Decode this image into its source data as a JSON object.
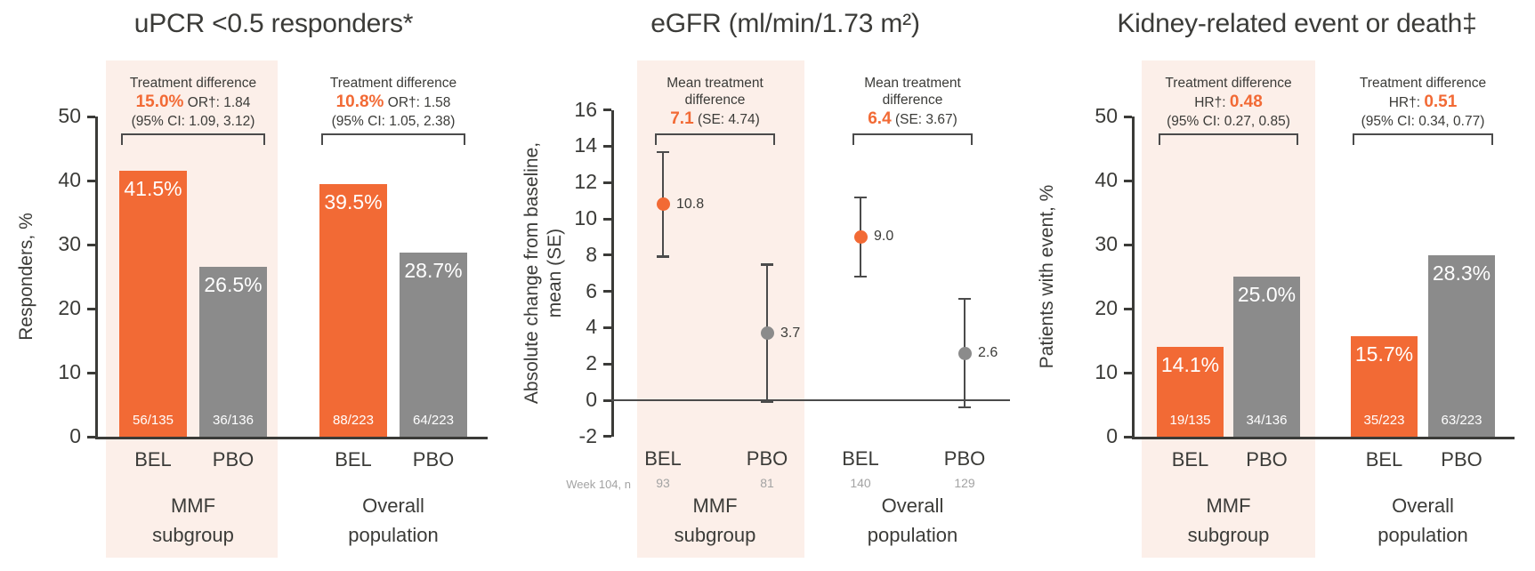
{
  "colors": {
    "bel": "#F26A35",
    "pbo": "#8B8B8B",
    "highlight": "#FCEFE9",
    "accent_text": "#F26A35",
    "dark_text": "#3B3B38",
    "muted_text": "#A3A3A3",
    "line": "#4B4B4B",
    "bar_label_text": "#FFFFFF"
  },
  "arms": [
    "BEL",
    "PBO"
  ],
  "chart_data": [
    {
      "type": "bar",
      "title": "uPCR <0.5 responders*",
      "ylabel": "Responders, %",
      "ylim": [
        0,
        50
      ],
      "yticks": [
        0,
        10,
        20,
        30,
        40,
        50
      ],
      "grid": false,
      "groups": [
        {
          "label": [
            "MMF",
            "subgroup"
          ],
          "highlighted": true,
          "annotation": {
            "lines": [
              "Treatment difference"
            ],
            "value_parts": [
              {
                "text": "15.0%",
                "accent": true
              },
              {
                "text": " OR†: 1.84",
                "accent": false
              }
            ],
            "ci": "(95% CI: 1.09, 3.12)"
          },
          "bars": [
            {
              "arm": "BEL",
              "value": 41.5,
              "value_label": "41.5%",
              "n_label": "56/135"
            },
            {
              "arm": "PBO",
              "value": 26.5,
              "value_label": "26.5%",
              "n_label": "36/136"
            }
          ]
        },
        {
          "label": [
            "Overall",
            "population"
          ],
          "highlighted": false,
          "annotation": {
            "lines": [
              "Treatment difference"
            ],
            "value_parts": [
              {
                "text": "10.8%",
                "accent": true
              },
              {
                "text": " OR†: 1.58",
                "accent": false
              }
            ],
            "ci": "(95% CI: 1.05, 2.38)"
          },
          "bars": [
            {
              "arm": "BEL",
              "value": 39.5,
              "value_label": "39.5%",
              "n_label": "88/223"
            },
            {
              "arm": "PBO",
              "value": 28.7,
              "value_label": "28.7%",
              "n_label": "64/223"
            }
          ]
        }
      ]
    },
    {
      "type": "errorbar",
      "title": "eGFR (ml/min/1.73 m²)",
      "ylabel_lines": [
        "Absolute change from baseline,",
        "mean (SE)"
      ],
      "ylim": [
        -2,
        16
      ],
      "yticks": [
        16,
        14,
        12,
        10,
        8,
        6,
        4,
        2,
        0,
        -2
      ],
      "zero_line": true,
      "x_footer_label": "Week 104, n",
      "groups": [
        {
          "label": [
            "MMF",
            "subgroup"
          ],
          "highlighted": true,
          "annotation": {
            "lines": [
              "Mean treatment",
              "difference"
            ],
            "value_parts": [
              {
                "text": "7.1",
                "accent": true
              },
              {
                "text": " (SE: 4.74)",
                "accent": false
              }
            ],
            "ci": null
          },
          "points": [
            {
              "arm": "BEL",
              "value": 10.8,
              "value_label": "10.8",
              "whisker_low": 7.9,
              "whisker_high": 13.7,
              "n": "93"
            },
            {
              "arm": "PBO",
              "value": 3.7,
              "value_label": "3.7",
              "whisker_low": -0.1,
              "whisker_high": 7.5,
              "n": "81"
            }
          ]
        },
        {
          "label": [
            "Overall",
            "population"
          ],
          "highlighted": false,
          "annotation": {
            "lines": [
              "Mean treatment",
              "difference"
            ],
            "value_parts": [
              {
                "text": "6.4",
                "accent": true
              },
              {
                "text": " (SE: 3.67)",
                "accent": false
              }
            ],
            "ci": null
          },
          "points": [
            {
              "arm": "BEL",
              "value": 9.0,
              "value_label": "9.0",
              "whisker_low": 6.8,
              "whisker_high": 11.2,
              "n": "140"
            },
            {
              "arm": "PBO",
              "value": 2.6,
              "value_label": "2.6",
              "whisker_low": -0.4,
              "whisker_high": 5.6,
              "n": "129"
            }
          ]
        }
      ]
    },
    {
      "type": "bar",
      "title": "Kidney-related event or death‡",
      "ylabel": "Patients with event, %",
      "ylim": [
        0,
        50
      ],
      "yticks": [
        0,
        10,
        20,
        30,
        40,
        50
      ],
      "grid": false,
      "groups": [
        {
          "label": [
            "MMF",
            "subgroup"
          ],
          "highlighted": true,
          "annotation": {
            "lines": [
              "Treatment difference"
            ],
            "value_parts": [
              {
                "text": "HR†: ",
                "accent": false
              },
              {
                "text": "0.48",
                "accent": true
              }
            ],
            "ci": "(95% CI: 0.27, 0.85)"
          },
          "bars": [
            {
              "arm": "BEL",
              "value": 14.1,
              "value_label": "14.1%",
              "n_label": "19/135"
            },
            {
              "arm": "PBO",
              "value": 25.0,
              "value_label": "25.0%",
              "n_label": "34/136"
            }
          ]
        },
        {
          "label": [
            "Overall",
            "population"
          ],
          "highlighted": false,
          "annotation": {
            "lines": [
              "Treatment difference"
            ],
            "value_parts": [
              {
                "text": "HR†: ",
                "accent": false
              },
              {
                "text": "0.51",
                "accent": true
              }
            ],
            "ci": "(95% CI: 0.34, 0.77)"
          },
          "bars": [
            {
              "arm": "BEL",
              "value": 15.7,
              "value_label": "15.7%",
              "n_label": "35/223"
            },
            {
              "arm": "PBO",
              "value": 28.3,
              "value_label": "28.3%",
              "n_label": "63/223"
            }
          ]
        }
      ]
    }
  ]
}
